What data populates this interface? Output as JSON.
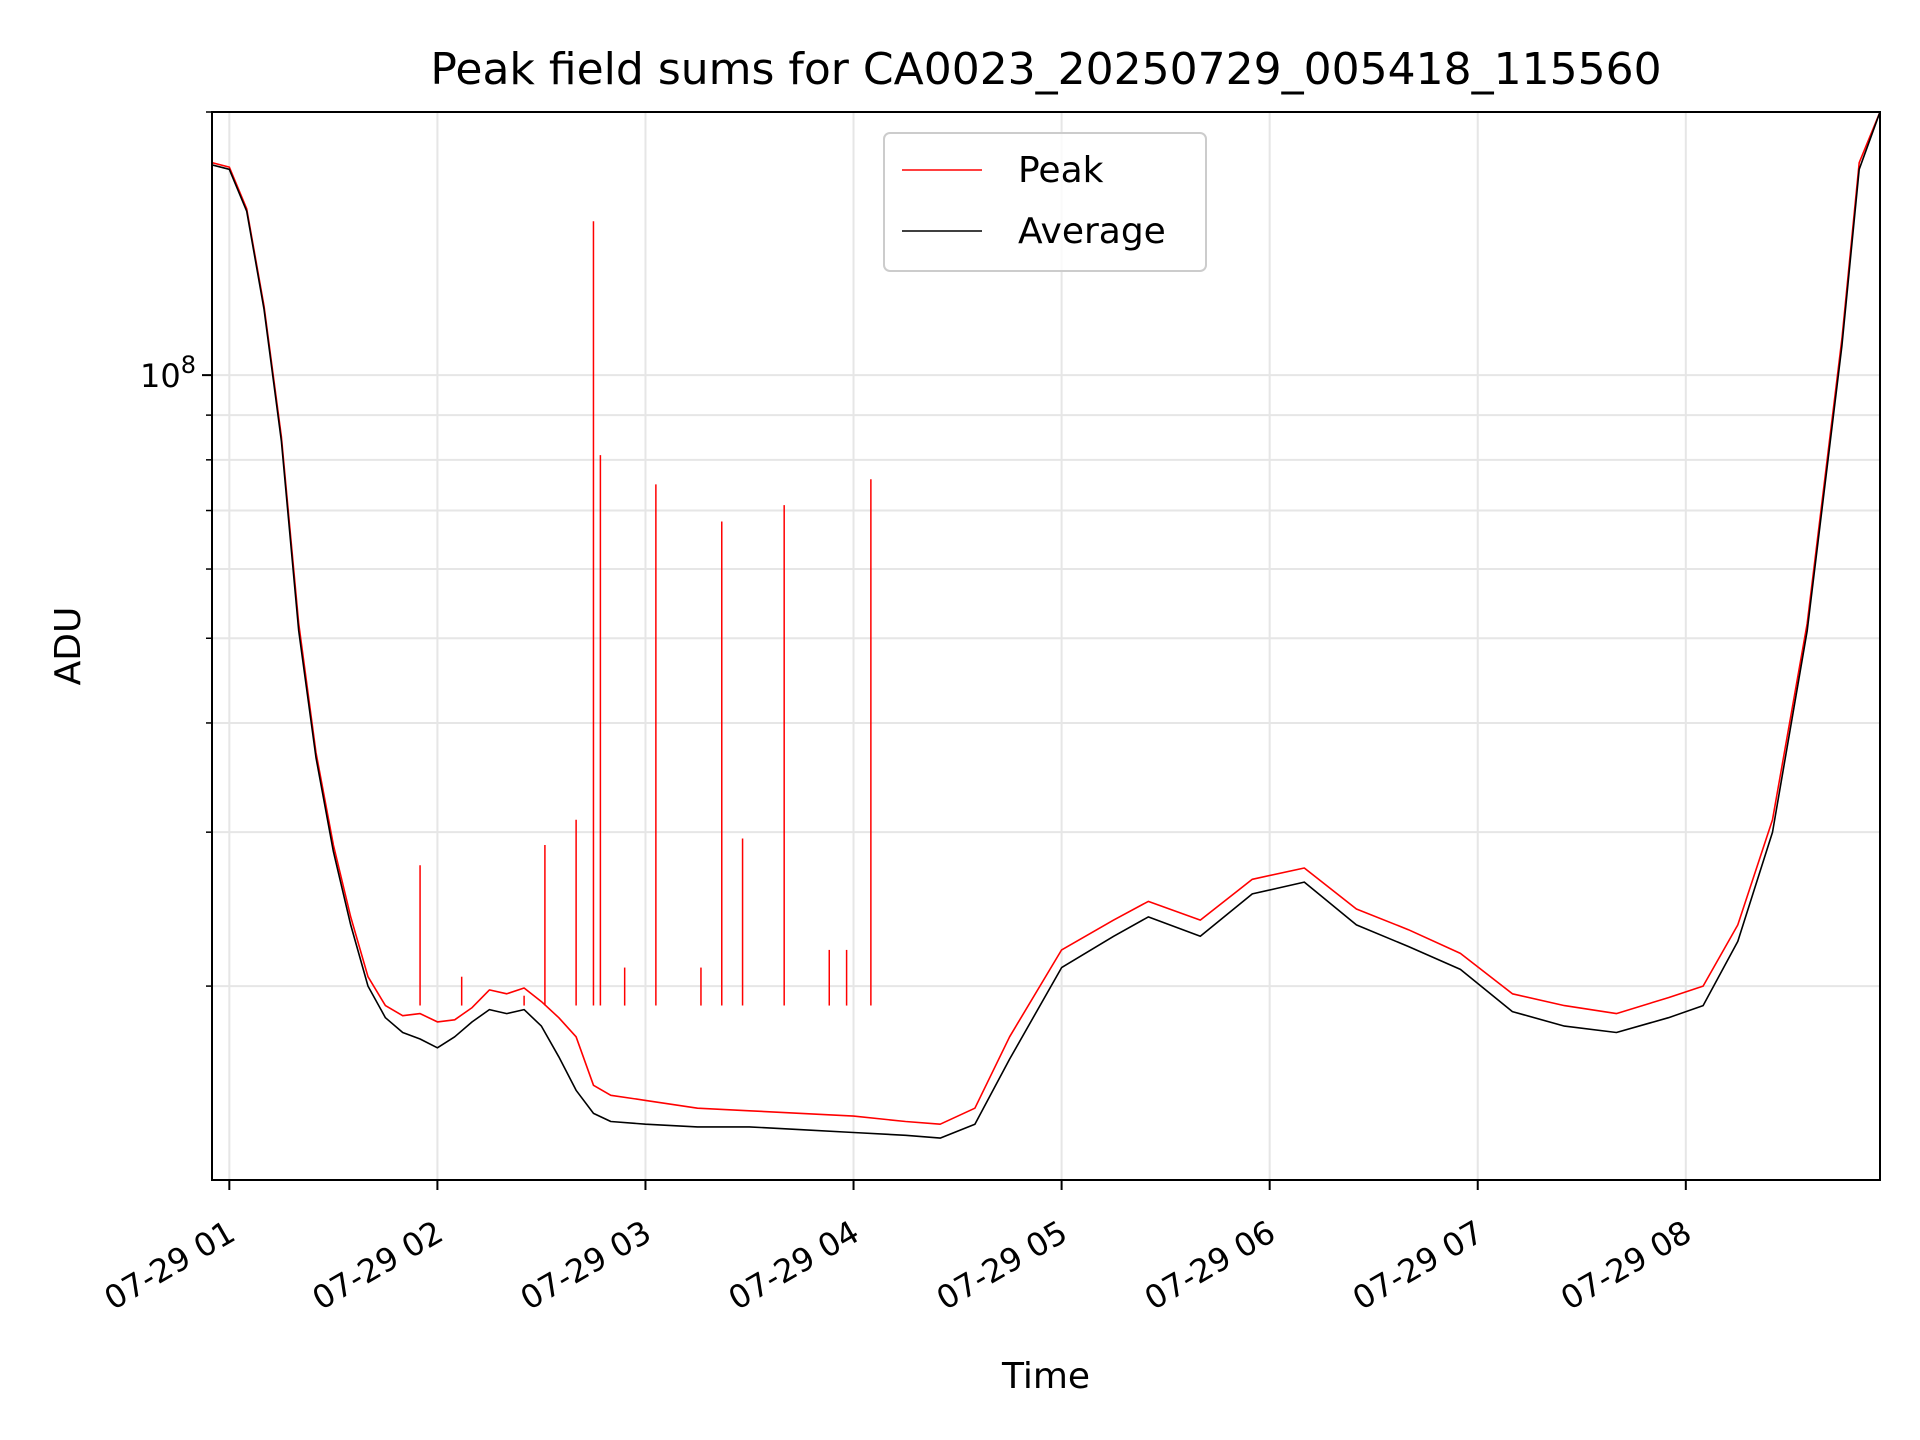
{
  "chart_data": {
    "type": "line",
    "title": "Peak field sums for CA0023_20250729_005418_115560",
    "xlabel": "Time",
    "ylabel": "ADU",
    "yscale": "log",
    "ylim": [
      12000000,
      200000000
    ],
    "xlim": [
      "2025-07-29 00:55",
      "2025-07-29 08:56"
    ],
    "grid": true,
    "legend_position": "top-center",
    "x_ticks": [
      "07-29 01",
      "07-29 02",
      "07-29 03",
      "07-29 04",
      "07-29 05",
      "07-29 06",
      "07-29 07",
      "07-29 08"
    ],
    "x_tick_times": [
      "2025-07-29 01:00",
      "2025-07-29 02:00",
      "2025-07-29 03:00",
      "2025-07-29 04:00",
      "2025-07-29 05:00",
      "2025-07-29 06:00",
      "2025-07-29 07:00",
      "2025-07-29 08:00"
    ],
    "y_major_ticks": [
      {
        "value": 100000000,
        "label": "10^8"
      }
    ],
    "y_minor_ticks": [
      20000000,
      30000000,
      40000000,
      50000000,
      60000000,
      70000000,
      80000000,
      90000000,
      200000000
    ],
    "series": [
      {
        "name": "Peak",
        "color": "#ff0000",
        "x": [
          "2025-07-29 00:55",
          "2025-07-29 01:00",
          "2025-07-29 01:05",
          "2025-07-29 01:10",
          "2025-07-29 01:15",
          "2025-07-29 01:20",
          "2025-07-29 01:25",
          "2025-07-29 01:30",
          "2025-07-29 01:35",
          "2025-07-29 01:40",
          "2025-07-29 01:45",
          "2025-07-29 01:50",
          "2025-07-29 01:55",
          "2025-07-29 02:00",
          "2025-07-29 02:05",
          "2025-07-29 02:10",
          "2025-07-29 02:15",
          "2025-07-29 02:20",
          "2025-07-29 02:25",
          "2025-07-29 02:30",
          "2025-07-29 02:35",
          "2025-07-29 02:40",
          "2025-07-29 02:45",
          "2025-07-29 02:50",
          "2025-07-29 03:00",
          "2025-07-29 03:15",
          "2025-07-29 03:30",
          "2025-07-29 03:45",
          "2025-07-29 04:00",
          "2025-07-29 04:15",
          "2025-07-29 04:25",
          "2025-07-29 04:35",
          "2025-07-29 04:45",
          "2025-07-29 05:00",
          "2025-07-29 05:15",
          "2025-07-29 05:25",
          "2025-07-29 05:40",
          "2025-07-29 05:55",
          "2025-07-29 06:10",
          "2025-07-29 06:25",
          "2025-07-29 06:40",
          "2025-07-29 06:55",
          "2025-07-29 07:10",
          "2025-07-29 07:25",
          "2025-07-29 07:40",
          "2025-07-29 07:55",
          "2025-07-29 08:05",
          "2025-07-29 08:15",
          "2025-07-29 08:25",
          "2025-07-29 08:35",
          "2025-07-29 08:45",
          "2025-07-29 08:50",
          "2025-07-29 08:56"
        ],
        "y": [
          175000000,
          173000000,
          155000000,
          120000000,
          85000000,
          52000000,
          37000000,
          29000000,
          24000000,
          20500000,
          19000000,
          18500000,
          18600000,
          18200000,
          18300000,
          18900000,
          19800000,
          19600000,
          19900000,
          19200000,
          18400000,
          17500000,
          15400000,
          15000000,
          14800000,
          14500000,
          14400000,
          14300000,
          14200000,
          14000000,
          13900000,
          14500000,
          17500000,
          22000000,
          23800000,
          25000000,
          23800000,
          26500000,
          27300000,
          24500000,
          23200000,
          21800000,
          19600000,
          19000000,
          18600000,
          19400000,
          20000000,
          23500000,
          31000000,
          52000000,
          110000000,
          175000000,
          200000000
        ]
      },
      {
        "name": "Average",
        "color": "#000000",
        "x": [
          "2025-07-29 00:55",
          "2025-07-29 01:00",
          "2025-07-29 01:05",
          "2025-07-29 01:10",
          "2025-07-29 01:15",
          "2025-07-29 01:20",
          "2025-07-29 01:25",
          "2025-07-29 01:30",
          "2025-07-29 01:35",
          "2025-07-29 01:40",
          "2025-07-29 01:45",
          "2025-07-29 01:50",
          "2025-07-29 01:55",
          "2025-07-29 02:00",
          "2025-07-29 02:05",
          "2025-07-29 02:10",
          "2025-07-29 02:15",
          "2025-07-29 02:20",
          "2025-07-29 02:25",
          "2025-07-29 02:30",
          "2025-07-29 02:35",
          "2025-07-29 02:40",
          "2025-07-29 02:45",
          "2025-07-29 02:50",
          "2025-07-29 03:00",
          "2025-07-29 03:15",
          "2025-07-29 03:30",
          "2025-07-29 03:45",
          "2025-07-29 04:00",
          "2025-07-29 04:15",
          "2025-07-29 04:25",
          "2025-07-29 04:35",
          "2025-07-29 04:45",
          "2025-07-29 05:00",
          "2025-07-29 05:15",
          "2025-07-29 05:25",
          "2025-07-29 05:40",
          "2025-07-29 05:55",
          "2025-07-29 06:10",
          "2025-07-29 06:25",
          "2025-07-29 06:40",
          "2025-07-29 06:55",
          "2025-07-29 07:10",
          "2025-07-29 07:25",
          "2025-07-29 07:40",
          "2025-07-29 07:55",
          "2025-07-29 08:05",
          "2025-07-29 08:15",
          "2025-07-29 08:25",
          "2025-07-29 08:35",
          "2025-07-29 08:45",
          "2025-07-29 08:50",
          "2025-07-29 08:56"
        ],
        "y": [
          174000000,
          172000000,
          154000000,
          119000000,
          84000000,
          51000000,
          36500000,
          28500000,
          23500000,
          20000000,
          18400000,
          17700000,
          17400000,
          17000000,
          17500000,
          18200000,
          18800000,
          18600000,
          18800000,
          18000000,
          16600000,
          15200000,
          14300000,
          14000000,
          13900000,
          13800000,
          13800000,
          13700000,
          13600000,
          13500000,
          13400000,
          13900000,
          16500000,
          21000000,
          22800000,
          24000000,
          22800000,
          25500000,
          26300000,
          23500000,
          22200000,
          20900000,
          18700000,
          18000000,
          17700000,
          18400000,
          19000000,
          22500000,
          30000000,
          51000000,
          108000000,
          172000000,
          200000000
        ]
      }
    ],
    "spikes": {
      "x": [
        "2025-07-29 01:55",
        "2025-07-29 02:07",
        "2025-07-29 02:25",
        "2025-07-29 02:31",
        "2025-07-29 02:40",
        "2025-07-29 02:45",
        "2025-07-29 02:47",
        "2025-07-29 02:54",
        "2025-07-29 03:03",
        "2025-07-29 03:16",
        "2025-07-29 03:22",
        "2025-07-29 03:28",
        "2025-07-29 03:40",
        "2025-07-29 03:53",
        "2025-07-29 03:58",
        "2025-07-29 04:05"
      ],
      "y": [
        27500000,
        20500000,
        19500000,
        29000000,
        31000000,
        150000000,
        81000000,
        21000000,
        75000000,
        21000000,
        68000000,
        29500000,
        71000000,
        22000000,
        22000000,
        76000000
      ]
    }
  }
}
